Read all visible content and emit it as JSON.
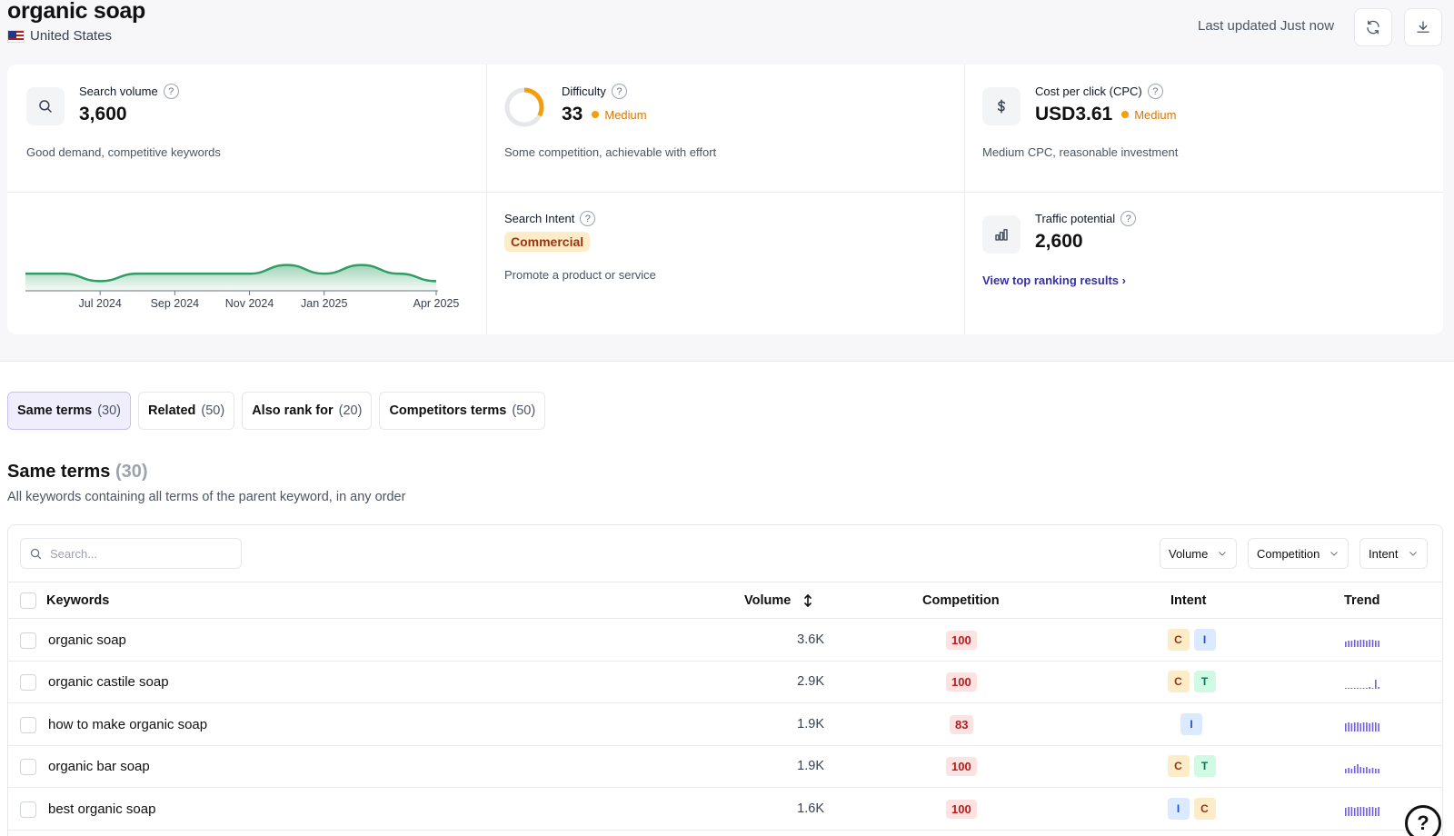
{
  "header": {
    "keyword": "organic soap",
    "location": "United States",
    "last_updated": "Last updated Just now"
  },
  "metrics": {
    "search_volume": {
      "label": "Search volume",
      "value": "3,600",
      "description": "Good demand, competitive keywords"
    },
    "difficulty": {
      "label": "Difficulty",
      "value": "33",
      "level": "Medium",
      "description": "Some competition, achievable with effort",
      "score": 33
    },
    "cpc": {
      "label": "Cost per click (CPC)",
      "value": "USD3.61",
      "level": "Medium",
      "description": "Medium CPC, reasonable investment"
    },
    "search_intent": {
      "label": "Search Intent",
      "value": "Commercial",
      "description": "Promote a product or service"
    },
    "traffic_potential": {
      "label": "Traffic potential",
      "value": "2,600",
      "link": "View top ranking results ›"
    }
  },
  "chart_data": {
    "type": "area",
    "x": [
      "May 2024",
      "Jun 2024",
      "Jul 2024",
      "Aug 2024",
      "Sep 2024",
      "Oct 2024",
      "Nov 2024",
      "Dec 2024",
      "Jan 2025",
      "Feb 2025",
      "Mar 2025",
      "Apr 2025"
    ],
    "values": [
      3600,
      3600,
      2900,
      3600,
      3600,
      3600,
      3600,
      4400,
      3600,
      4400,
      3600,
      2900
    ],
    "tick_labels": [
      "Jul 2024",
      "Sep 2024",
      "Nov 2024",
      "Jan 2025",
      "Apr 2025"
    ],
    "color": "#2f9e63",
    "grid": false
  },
  "tabs": [
    {
      "label": "Same terms",
      "count": "(30)",
      "active": true
    },
    {
      "label": "Related",
      "count": "(50)",
      "active": false
    },
    {
      "label": "Also rank for",
      "count": "(20)",
      "active": false
    },
    {
      "label": "Competitors terms",
      "count": "(50)",
      "active": false
    }
  ],
  "section": {
    "title": "Same terms",
    "count": "(30)",
    "subtitle": "All keywords containing all terms of the parent keyword, in any order"
  },
  "table": {
    "search_placeholder": "Search...",
    "filters": [
      "Volume",
      "Competition",
      "Intent"
    ],
    "columns": {
      "keywords": "Keywords",
      "volume": "Volume",
      "competition": "Competition",
      "intent": "Intent",
      "trend": "Trend"
    },
    "rows": [
      {
        "keyword": "organic soap",
        "volume": "3.6K",
        "competition": "100",
        "intent": [
          "C",
          "I"
        ],
        "trend": [
          6,
          7,
          7,
          8,
          7,
          8,
          8,
          7,
          8,
          8,
          7,
          7
        ]
      },
      {
        "keyword": "organic castile soap",
        "volume": "2.9K",
        "competition": "100",
        "intent": [
          "C",
          "T"
        ],
        "trend": [
          1,
          1,
          1,
          1,
          1,
          1,
          1,
          1,
          2,
          1,
          10,
          2
        ]
      },
      {
        "keyword": "how to make organic soap",
        "volume": "1.9K",
        "competition": "83",
        "intent": [
          "I"
        ],
        "trend": [
          9,
          10,
          9,
          10,
          10,
          9,
          10,
          10,
          9,
          10,
          10,
          9
        ]
      },
      {
        "keyword": "organic bar soap",
        "volume": "1.9K",
        "competition": "100",
        "intent": [
          "C",
          "T"
        ],
        "trend": [
          5,
          6,
          5,
          8,
          10,
          7,
          6,
          7,
          5,
          6,
          5,
          5
        ]
      },
      {
        "keyword": "best organic soap",
        "volume": "1.6K",
        "competition": "100",
        "intent": [
          "I",
          "C"
        ],
        "trend": [
          9,
          10,
          10,
          9,
          10,
          10,
          10,
          9,
          10,
          10,
          9,
          10
        ]
      }
    ]
  },
  "colors": {
    "accent": "#3730a3",
    "chart_line": "#2f9e63",
    "medium": "#f59e0b",
    "competition_bg": "#fde2e2",
    "competition_text": "#b91c1c",
    "trend_bar": "#6d5ce7"
  }
}
